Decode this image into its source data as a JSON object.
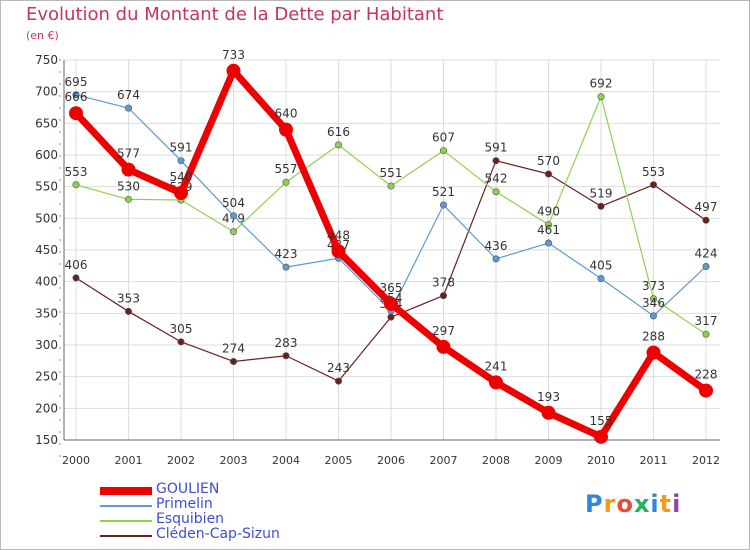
{
  "header": {
    "title": "Evolution du Montant de la Dette par Habitant",
    "subtitle": "(en €)"
  },
  "logo": {
    "text": "Proxiti"
  },
  "chart_data": {
    "type": "line",
    "title": "Evolution du Montant de la Dette par Habitant",
    "ylabel": "(en €)",
    "xlabel": "",
    "ylim": [
      150,
      750
    ],
    "yticks": [
      150,
      200,
      250,
      300,
      350,
      400,
      450,
      500,
      550,
      600,
      650,
      700,
      750
    ],
    "categories": [
      "2000",
      "2001",
      "2002",
      "2003",
      "2004",
      "2005",
      "2006",
      "2007",
      "2008",
      "2009",
      "2010",
      "2011",
      "2012"
    ],
    "grid": true,
    "legend": "bottom-left",
    "series": [
      {
        "name": "GOULIEN",
        "color": "#ee0000",
        "values": [
          666,
          577,
          540,
          733,
          640,
          448,
          365,
          297,
          241,
          193,
          155,
          288,
          228
        ]
      },
      {
        "name": "Primelin",
        "color": "#5b9bd5",
        "values": [
          695,
          674,
          591,
          504,
          423,
          437,
          354,
          521,
          436,
          461,
          405,
          346,
          424
        ]
      },
      {
        "name": "Esquibien",
        "color": "#8fd14f",
        "values": [
          553,
          530,
          529,
          479,
          557,
          616,
          551,
          607,
          542,
          490,
          692,
          373,
          317
        ]
      },
      {
        "name": "Cléden-Cap-Sizun",
        "color": "#6b2020",
        "values": [
          406,
          353,
          305,
          274,
          283,
          243,
          344,
          378,
          591,
          570,
          519,
          553,
          497
        ]
      }
    ]
  }
}
